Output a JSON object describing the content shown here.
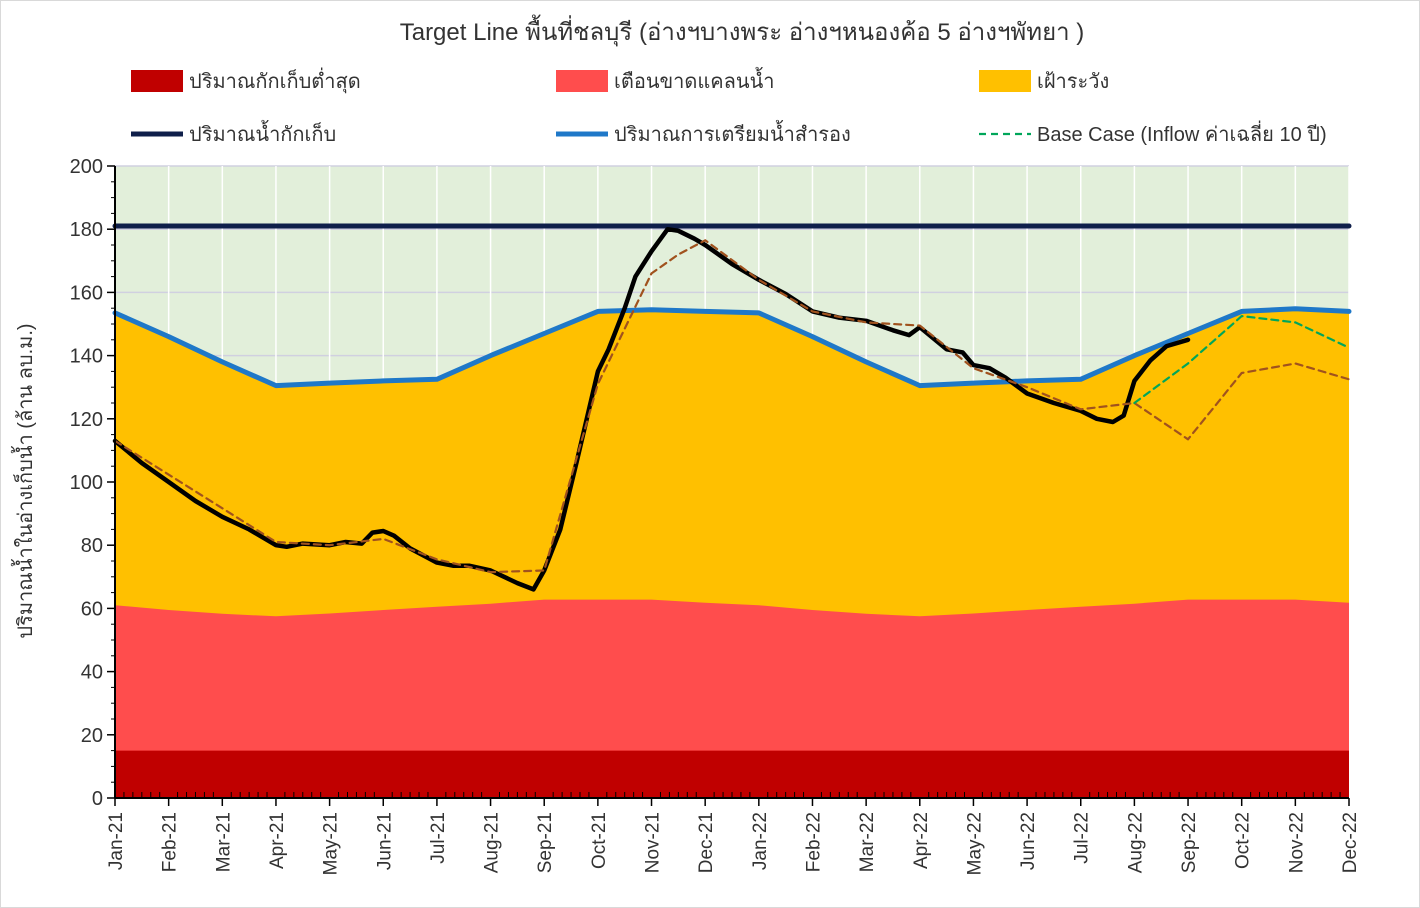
{
  "chart_data": {
    "type": "area",
    "title": "Target Line พื้นที่ชลบุรี (อ่างฯบางพระ อ่างฯหนองค้อ 5 อ่างฯพัทยา )",
    "ylabel": "ปริมาณน้ำในอ่างเก็บน้ำ (ล้าน ลบ.ม.)",
    "xlabel": "",
    "ylim": [
      0,
      200
    ],
    "yticks": [
      0,
      20,
      40,
      60,
      80,
      100,
      120,
      140,
      160,
      180,
      200
    ],
    "categories": [
      "Jan-21",
      "Feb-21",
      "Mar-21",
      "Apr-21",
      "May-21",
      "Jun-21",
      "Jul-21",
      "Aug-21",
      "Sep-21",
      "Oct-21",
      "Nov-21",
      "Dec-21",
      "Jan-22",
      "Feb-22",
      "Mar-22",
      "Apr-22",
      "May-22",
      "Jun-22",
      "Jul-22",
      "Aug-22",
      "Sep-22",
      "Oct-22",
      "Nov-22",
      "Dec-22"
    ],
    "grid": true,
    "plot_background": "#e2efda",
    "legend": [
      {
        "name": "ปริมาณกักเก็บต่ำสุด",
        "kind": "swatch",
        "color": "#c00000"
      },
      {
        "name": "เตือนขาดแคลนน้ำ",
        "kind": "swatch",
        "color": "#ff4d4d"
      },
      {
        "name": "เฝ้าระวัง",
        "kind": "swatch",
        "color": "#ffc000"
      },
      {
        "name": "ปริมาณน้ำกักเก็บ",
        "kind": "line",
        "color": "#0f1f4a"
      },
      {
        "name": "ปริมาณการเตรียมน้ำสำรอง",
        "kind": "line",
        "color": "#1f78c8"
      },
      {
        "name": "Base Case (Inflow ค่าเฉลี่ย 10 ปี)",
        "kind": "dash",
        "color": "#00a65a"
      }
    ],
    "series": [
      {
        "name": "ปริมาณกักเก็บต่ำสุด",
        "type": "area",
        "color": "#c00000",
        "x": [
          0,
          23
        ],
        "values": [
          15,
          15
        ]
      },
      {
        "name": "เตือนขาดแคลนน้ำ",
        "type": "area",
        "color": "#ff4d4d",
        "x": [
          0,
          1,
          2,
          3,
          4,
          5,
          6,
          7,
          8,
          9,
          10,
          11,
          12,
          13,
          14,
          15,
          16,
          17,
          18,
          19,
          20,
          21,
          22,
          23
        ],
        "values": [
          61,
          59.5,
          58.3,
          57.5,
          58.4,
          59.5,
          60.5,
          61.5,
          62.8,
          62.8,
          62.8,
          61.8,
          61,
          59.5,
          58.3,
          57.5,
          58.4,
          59.5,
          60.5,
          61.5,
          62.8,
          62.8,
          62.8,
          61.8
        ]
      },
      {
        "name": "เฝ้าระวัง",
        "type": "area",
        "color": "#ffc000",
        "x": [
          0,
          1,
          2,
          3,
          4,
          5,
          6,
          7,
          8,
          9,
          10,
          11,
          12,
          13,
          14,
          15,
          16,
          17,
          18,
          19,
          20,
          21,
          22,
          23
        ],
        "values": [
          153.5,
          146,
          138,
          130.5,
          131.3,
          132,
          132.5,
          140,
          147,
          154,
          154.5,
          154,
          153.5,
          146,
          138,
          130.5,
          131.3,
          132,
          132.5,
          140,
          147,
          154,
          154.8,
          154
        ]
      },
      {
        "name": "ปริมาณน้ำกักเก็บ",
        "type": "line",
        "color": "#0f1f4a",
        "x": [
          0,
          23
        ],
        "values": [
          181,
          181
        ]
      },
      {
        "name": "ปริมาณการเตรียมน้ำสำรอง",
        "type": "line",
        "color": "#1f78c8",
        "x": [
          0,
          1,
          2,
          3,
          4,
          5,
          6,
          7,
          8,
          9,
          10,
          11,
          12,
          13,
          14,
          15,
          16,
          17,
          18,
          19,
          20,
          21,
          22,
          23
        ],
        "values": [
          153.5,
          146,
          138,
          130.5,
          131.3,
          132,
          132.5,
          140,
          147,
          154,
          154.5,
          154,
          153.5,
          146,
          138,
          130.5,
          131.3,
          132,
          132.5,
          140,
          147,
          154,
          154.8,
          154
        ]
      },
      {
        "name": "",
        "type": "line",
        "color": "#000000",
        "x": [
          0,
          0.5,
          1,
          1.5,
          2,
          2.5,
          3,
          3.2,
          3.5,
          4,
          4.3,
          4.6,
          4.8,
          5,
          5.2,
          5.5,
          6,
          6.3,
          6.6,
          7,
          7.5,
          7.8,
          8,
          8.3,
          8.6,
          9,
          9.2,
          9.5,
          9.7,
          10,
          10.3,
          10.5,
          10.8,
          11,
          11.5,
          12,
          12.5,
          13,
          13.5,
          14,
          14.5,
          14.8,
          15,
          15.5,
          15.8,
          16,
          16.3,
          16.6,
          17,
          17.5,
          18,
          18.3,
          18.6,
          18.8,
          19,
          19.3,
          19.6,
          20
        ],
        "values": [
          113,
          106,
          100,
          94,
          89,
          85,
          80,
          79.5,
          80.5,
          80,
          81,
          80.5,
          84,
          84.5,
          83,
          79,
          74.5,
          73.5,
          73.5,
          72,
          68,
          66,
          72,
          85,
          106,
          135,
          142,
          155,
          165,
          173,
          180,
          179.5,
          177,
          175,
          169,
          164,
          159.5,
          154,
          152,
          151,
          148,
          146.5,
          149,
          142,
          141,
          137,
          136,
          133,
          128,
          125,
          122.5,
          120,
          119,
          121,
          132,
          138.5,
          143,
          145
        ]
      },
      {
        "name": "",
        "type": "dashed",
        "color": "#a0521e",
        "x": [
          0,
          3,
          4,
          5,
          6,
          7,
          8,
          9,
          10,
          10.5,
          11,
          12,
          13,
          14,
          15,
          16,
          17,
          18,
          19,
          20,
          21,
          22,
          23
        ],
        "values": [
          113,
          81,
          80,
          82,
          75.5,
          71.5,
          72,
          131,
          166,
          172,
          176.5,
          164,
          154,
          150.5,
          149.5,
          136,
          130,
          123,
          125,
          113.5,
          134.5,
          137.5,
          132.5
        ]
      },
      {
        "name": "Base Case (Inflow ค่าเฉลี่ย 10 ปี)",
        "type": "dashed",
        "color": "#00a65a",
        "x": [
          19,
          20,
          21,
          22,
          23
        ],
        "values": [
          125,
          137.5,
          152.5,
          150.5,
          142.5
        ]
      }
    ]
  }
}
